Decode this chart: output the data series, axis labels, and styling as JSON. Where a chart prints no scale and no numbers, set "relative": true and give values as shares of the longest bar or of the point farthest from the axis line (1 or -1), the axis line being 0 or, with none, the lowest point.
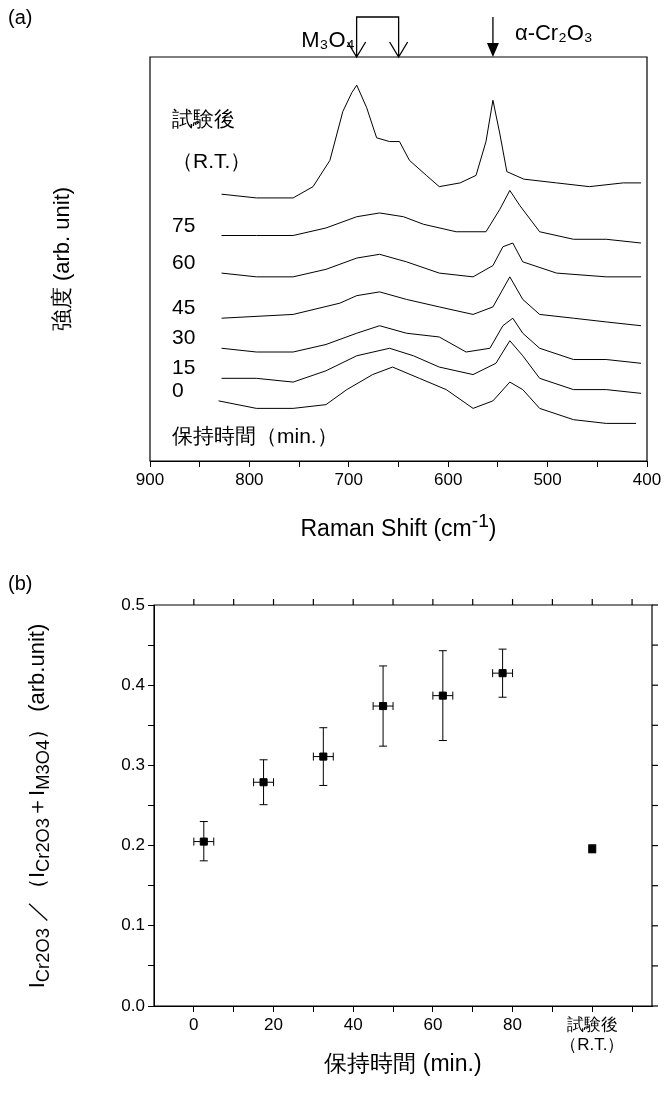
{
  "chart_data": [
    {
      "type": "line",
      "title": "(a)",
      "xlabel": "Raman Shift (cm$^{-1}$)",
      "ylabel": "強度 (arb. unit)",
      "legend_title": "保持時間（min.）",
      "relative": true,
      "xlim": [
        900,
        400
      ],
      "xticks": [
        900,
        {
          "value": 850,
          "label": null
        },
        800,
        {
          "value": 750,
          "label": null
        },
        700,
        {
          "value": 650,
          "label": null
        },
        600,
        {
          "value": 550,
          "label": null
        },
        500,
        {
          "value": 450,
          "label": null
        },
        400
      ],
      "annotations": [
        "M₃O₄",
        "α-Cr₂O₃"
      ],
      "series": [
        {
          "name": "試験後（R.T.）",
          "color": "#000000",
          "x": [
            828,
            793,
            756,
            736,
            719,
            706,
            697,
            692,
            682,
            672,
            659,
            649,
            639,
            622,
            609,
            588,
            572,
            562,
            555,
            548,
            541,
            524,
            491,
            458,
            424,
            406
          ],
          "values": [
            0.71,
            0.7,
            0.7,
            0.73,
            0.8,
            0.93,
            0.98,
            1.0,
            0.94,
            0.86,
            0.85,
            0.85,
            0.8,
            0.76,
            0.73,
            0.74,
            0.76,
            0.85,
            0.96,
            0.87,
            0.77,
            0.75,
            0.74,
            0.73,
            0.74,
            0.74
          ]
        },
        {
          "name": "75",
          "color": "#000000",
          "x": [
            828,
            793,
            756,
            723,
            692,
            669,
            645,
            625,
            592,
            562,
            548,
            538,
            528,
            508,
            474,
            441,
            406
          ],
          "values": [
            0.6,
            0.6,
            0.6,
            0.62,
            0.65,
            0.66,
            0.65,
            0.63,
            0.61,
            0.61,
            0.67,
            0.72,
            0.68,
            0.61,
            0.59,
            0.59,
            0.58
          ]
        },
        {
          "name": "60",
          "color": "#000000",
          "x": [
            828,
            793,
            756,
            723,
            692,
            669,
            642,
            609,
            575,
            555,
            545,
            535,
            525,
            491,
            441,
            406
          ],
          "values": [
            0.5,
            0.49,
            0.49,
            0.51,
            0.54,
            0.55,
            0.53,
            0.5,
            0.49,
            0.52,
            0.57,
            0.58,
            0.53,
            0.5,
            0.49,
            0.49
          ]
        },
        {
          "name": "45",
          "color": "#000000",
          "x": [
            828,
            756,
            709,
            692,
            669,
            642,
            609,
            575,
            555,
            538,
            525,
            508,
            474,
            441,
            406
          ],
          "values": [
            0.38,
            0.39,
            0.42,
            0.44,
            0.45,
            0.43,
            0.41,
            0.39,
            0.41,
            0.49,
            0.43,
            0.39,
            0.38,
            0.37,
            0.36
          ]
        },
        {
          "name": "30",
          "color": "#000000",
          "x": [
            828,
            793,
            756,
            723,
            692,
            669,
            642,
            609,
            582,
            558,
            545,
            535,
            525,
            508,
            474,
            441,
            406
          ],
          "values": [
            0.3,
            0.29,
            0.29,
            0.31,
            0.34,
            0.36,
            0.34,
            0.33,
            0.29,
            0.3,
            0.36,
            0.38,
            0.34,
            0.3,
            0.27,
            0.27,
            0.26
          ]
        },
        {
          "name": "15",
          "color": "#000000",
          "x": [
            828,
            793,
            756,
            723,
            692,
            659,
            635,
            609,
            575,
            552,
            538,
            525,
            508,
            474,
            441,
            406
          ],
          "values": [
            0.22,
            0.22,
            0.21,
            0.24,
            0.28,
            0.3,
            0.28,
            0.25,
            0.23,
            0.26,
            0.32,
            0.28,
            0.22,
            0.19,
            0.19,
            0.18
          ]
        },
        {
          "name": "0",
          "color": "#000000",
          "x": [
            831,
            793,
            756,
            723,
            702,
            676,
            656,
            629,
            602,
            575,
            555,
            538,
            525,
            508,
            474,
            441,
            411
          ],
          "values": [
            0.16,
            0.14,
            0.14,
            0.15,
            0.19,
            0.23,
            0.25,
            0.22,
            0.19,
            0.14,
            0.16,
            0.21,
            0.19,
            0.14,
            0.11,
            0.1,
            0.1
          ]
        }
      ]
    },
    {
      "type": "scatter",
      "title": "(b)",
      "xlabel": "保持時間 (min.)",
      "ylabel": "I$_{Cr2O3}$ ／（I$_{Cr2O3}$＋I$_{M3O4}$） (arb.unit)",
      "marker": "square",
      "color": "#000000",
      "xlim": [
        -10,
        115
      ],
      "xticks": [
        0,
        {
          "value": 10,
          "label": null
        },
        20,
        {
          "value": 30,
          "label": null
        },
        40,
        {
          "value": 50,
          "label": null
        },
        60,
        {
          "value": 70,
          "label": null
        },
        80,
        {
          "value": 90,
          "label": null
        },
        {
          "value": 100,
          "label": "試験後（R.T.）"
        },
        {
          "value": 110,
          "label": null
        }
      ],
      "ylim": [
        0,
        0.5
      ],
      "yticks": [
        {
          "value": 0,
          "label": "0.0"
        },
        {
          "value": 0.05,
          "label": null
        },
        0.1,
        {
          "value": 0.15,
          "label": null
        },
        0.2,
        {
          "value": 0.25,
          "label": null
        },
        0.3,
        {
          "value": 0.35,
          "label": null
        },
        0.4,
        {
          "value": 0.45,
          "label": null
        },
        0.5
      ],
      "x": [
        2.5,
        17.5,
        32.5,
        47.5,
        62.5,
        77.5,
        100
      ],
      "values": [
        0.205,
        0.279,
        0.311,
        0.374,
        0.387,
        0.415,
        0.196
      ],
      "errors": [
        [
          0.181,
          0.23
        ],
        [
          0.251,
          0.307
        ],
        [
          0.275,
          0.347
        ],
        [
          0.324,
          0.424
        ],
        [
          0.331,
          0.443
        ],
        [
          0.385,
          0.445
        ],
        [
          0.191,
          0.201
        ]
      ],
      "xerrors": [
        2.5,
        2.5,
        2.5,
        2.5,
        2.5,
        2.5,
        null
      ]
    }
  ]
}
